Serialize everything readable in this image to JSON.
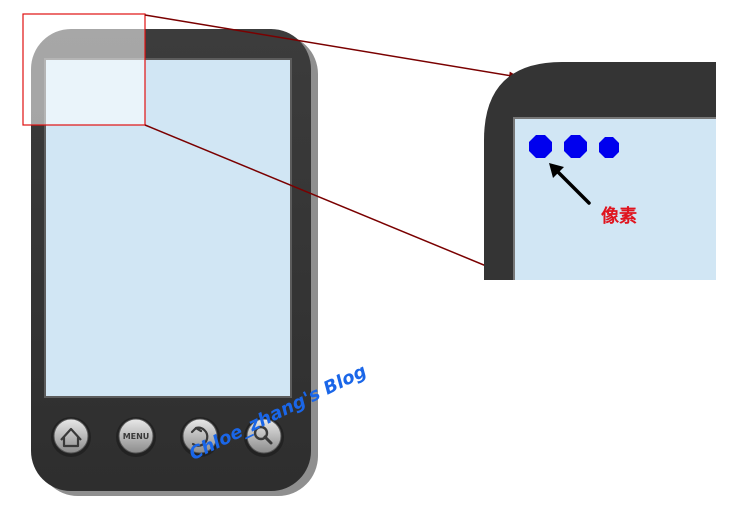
{
  "diagram": {
    "pixel_label": "像素",
    "phone_buttons": {
      "home": "home-icon",
      "menu_label": "MENU",
      "back": "back-icon",
      "search": "search-icon"
    },
    "watermark": "Chloe_zhang's Blog",
    "colors": {
      "phone_body": "#343434",
      "screen": "#d1e6f4",
      "highlight_box": "#e01010",
      "arrows": "#7a0000",
      "pixel_dots": "#0000ee",
      "pixel_label": "#e0141e",
      "watermark": "#1a66e8"
    }
  }
}
